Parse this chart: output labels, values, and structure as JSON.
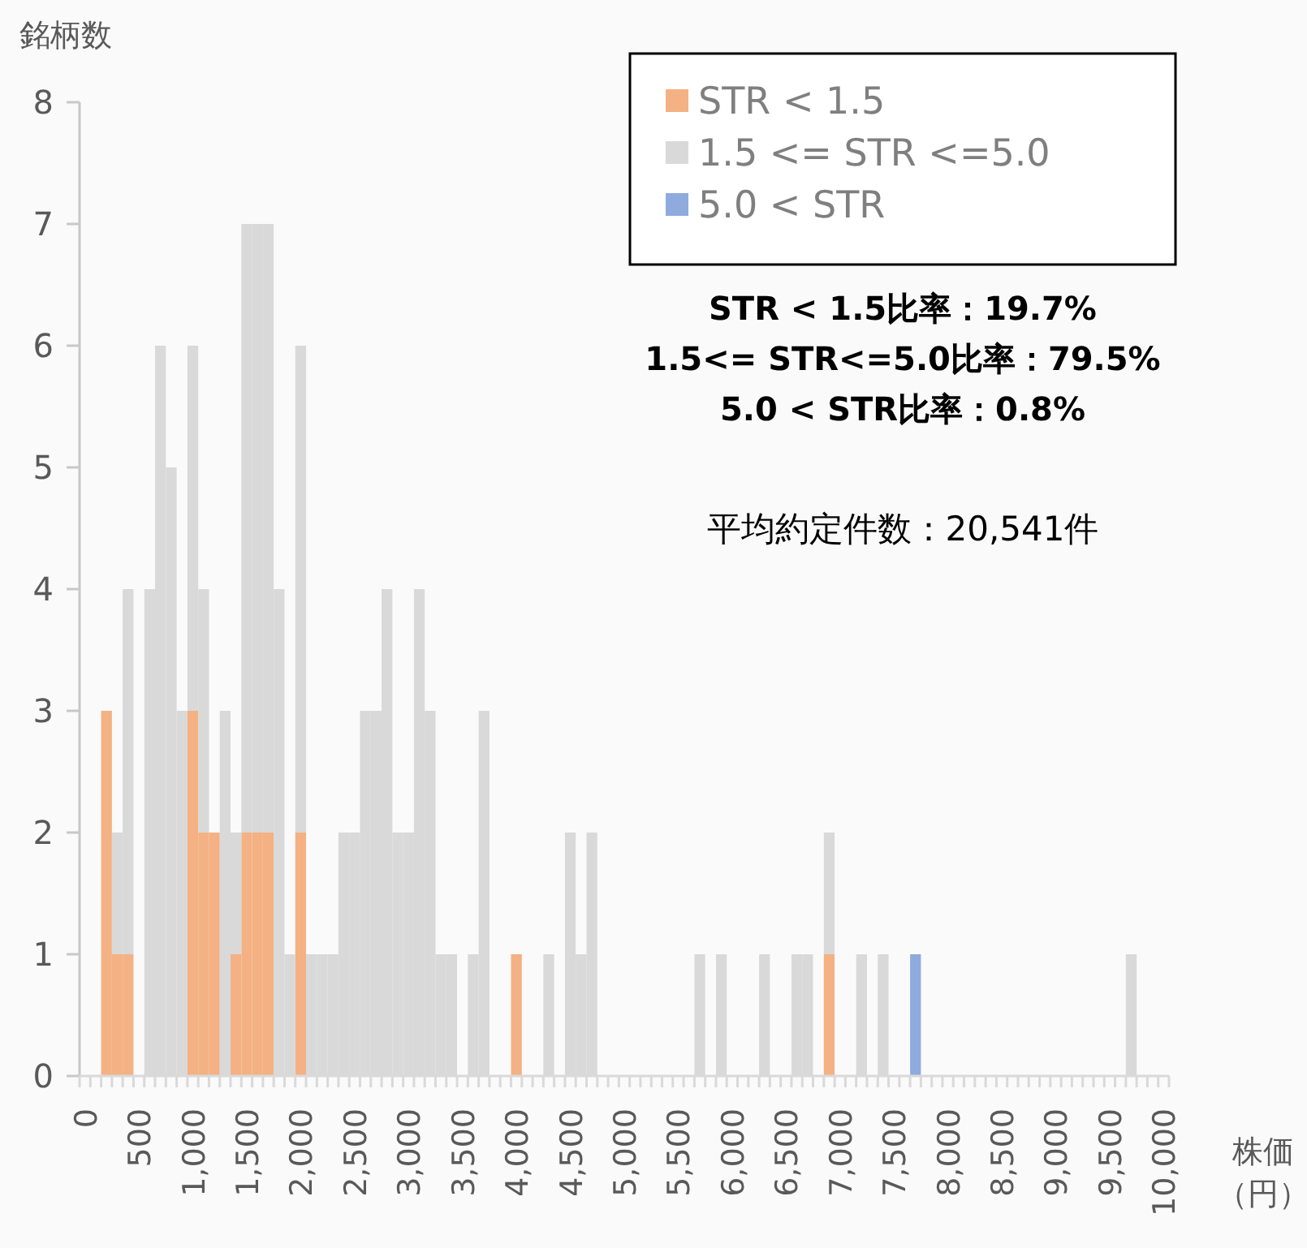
{
  "chart_data": {
    "type": "bar",
    "stacked": true,
    "ylabel": "銘柄数",
    "xlabel": "株価（円）",
    "categories": [
      "0",
      null,
      null,
      null,
      null,
      "500",
      null,
      null,
      null,
      null,
      "1,000",
      null,
      null,
      null,
      null,
      "1,500",
      null,
      null,
      null,
      null,
      "2,000",
      null,
      null,
      null,
      null,
      "2,500",
      null,
      null,
      null,
      null,
      "3,000",
      null,
      null,
      null,
      null,
      "3,500",
      null,
      null,
      null,
      null,
      "4,000",
      null,
      null,
      null,
      null,
      "4,500",
      null,
      null,
      null,
      null,
      "5,000",
      null,
      null,
      null,
      null,
      "5,500",
      null,
      null,
      null,
      null,
      "6,000",
      null,
      null,
      null,
      null,
      "6,500",
      null,
      null,
      null,
      null,
      "7,000",
      null,
      null,
      null,
      null,
      "7,500",
      null,
      null,
      null,
      null,
      "8,000",
      null,
      null,
      null,
      null,
      "8,500",
      null,
      null,
      null,
      null,
      "9,000",
      null,
      null,
      null,
      null,
      "9,500",
      null,
      null,
      null,
      null,
      "10,000"
    ],
    "series": [
      {
        "name": "STR < 1.5",
        "color": "#f4b183",
        "values": [
          0,
          0,
          3,
          1,
          1,
          0,
          0,
          0,
          0,
          0,
          3,
          2,
          2,
          0,
          1,
          2,
          2,
          2,
          0,
          0,
          2,
          0,
          0,
          0,
          0,
          0,
          0,
          0,
          0,
          0,
          0,
          0,
          0,
          0,
          0,
          0,
          0,
          0,
          0,
          0,
          1,
          0,
          0,
          0,
          0,
          0,
          0,
          0,
          0,
          0,
          0,
          0,
          0,
          0,
          0,
          0,
          0,
          0,
          0,
          0,
          0,
          0,
          0,
          0,
          0,
          0,
          0,
          0,
          0,
          1,
          0,
          0,
          0,
          0,
          0,
          0,
          0,
          0,
          0,
          0,
          0,
          0,
          0,
          0,
          0,
          0,
          0,
          0,
          0,
          0,
          0,
          0,
          0,
          0,
          0,
          0,
          0,
          0,
          0,
          0,
          0
        ]
      },
      {
        "name": "1.5 <= STR <=5.0",
        "color": "#d9d9d9",
        "values": [
          0,
          0,
          0,
          1,
          3,
          0,
          4,
          6,
          5,
          3,
          3,
          2,
          0,
          3,
          1,
          5,
          5,
          5,
          4,
          1,
          4,
          1,
          1,
          1,
          2,
          2,
          3,
          3,
          4,
          2,
          2,
          4,
          3,
          1,
          1,
          0,
          1,
          3,
          0,
          0,
          0,
          0,
          0,
          1,
          0,
          2,
          1,
          2,
          0,
          0,
          0,
          0,
          0,
          0,
          0,
          0,
          0,
          1,
          0,
          1,
          0,
          0,
          0,
          1,
          0,
          0,
          1,
          1,
          0,
          1,
          0,
          0,
          1,
          0,
          1,
          0,
          0,
          0,
          0,
          0,
          0,
          0,
          0,
          0,
          0,
          0,
          0,
          0,
          0,
          0,
          0,
          0,
          0,
          0,
          0,
          0,
          0,
          1,
          0,
          0,
          0
        ]
      },
      {
        "name": "5.0 < STR",
        "color": "#8faadc",
        "values": [
          0,
          0,
          0,
          0,
          0,
          0,
          0,
          0,
          0,
          0,
          0,
          0,
          0,
          0,
          0,
          0,
          0,
          0,
          0,
          0,
          0,
          0,
          0,
          0,
          0,
          0,
          0,
          0,
          0,
          0,
          0,
          0,
          0,
          0,
          0,
          0,
          0,
          0,
          0,
          0,
          0,
          0,
          0,
          0,
          0,
          0,
          0,
          0,
          0,
          0,
          0,
          0,
          0,
          0,
          0,
          0,
          0,
          0,
          0,
          0,
          0,
          0,
          0,
          0,
          0,
          0,
          0,
          0,
          0,
          0,
          0,
          0,
          0,
          0,
          0,
          0,
          0,
          1,
          0,
          0,
          0,
          0,
          0,
          0,
          0,
          0,
          0,
          0,
          0,
          0,
          0,
          0,
          0,
          0,
          0,
          0,
          0,
          0,
          0,
          0,
          0
        ]
      }
    ],
    "ylim": [
      0,
      8
    ],
    "yticks": [
      0,
      1,
      2,
      3,
      4,
      5,
      6,
      7,
      8
    ],
    "grid": false,
    "legend": "top right",
    "annotations": [
      "STR < 1.5比率：19.7%",
      "1.5<= STR<=5.0比率：79.5%",
      "5.0 < STR比率：0.8%",
      "平均約定件数：20,541件"
    ]
  }
}
